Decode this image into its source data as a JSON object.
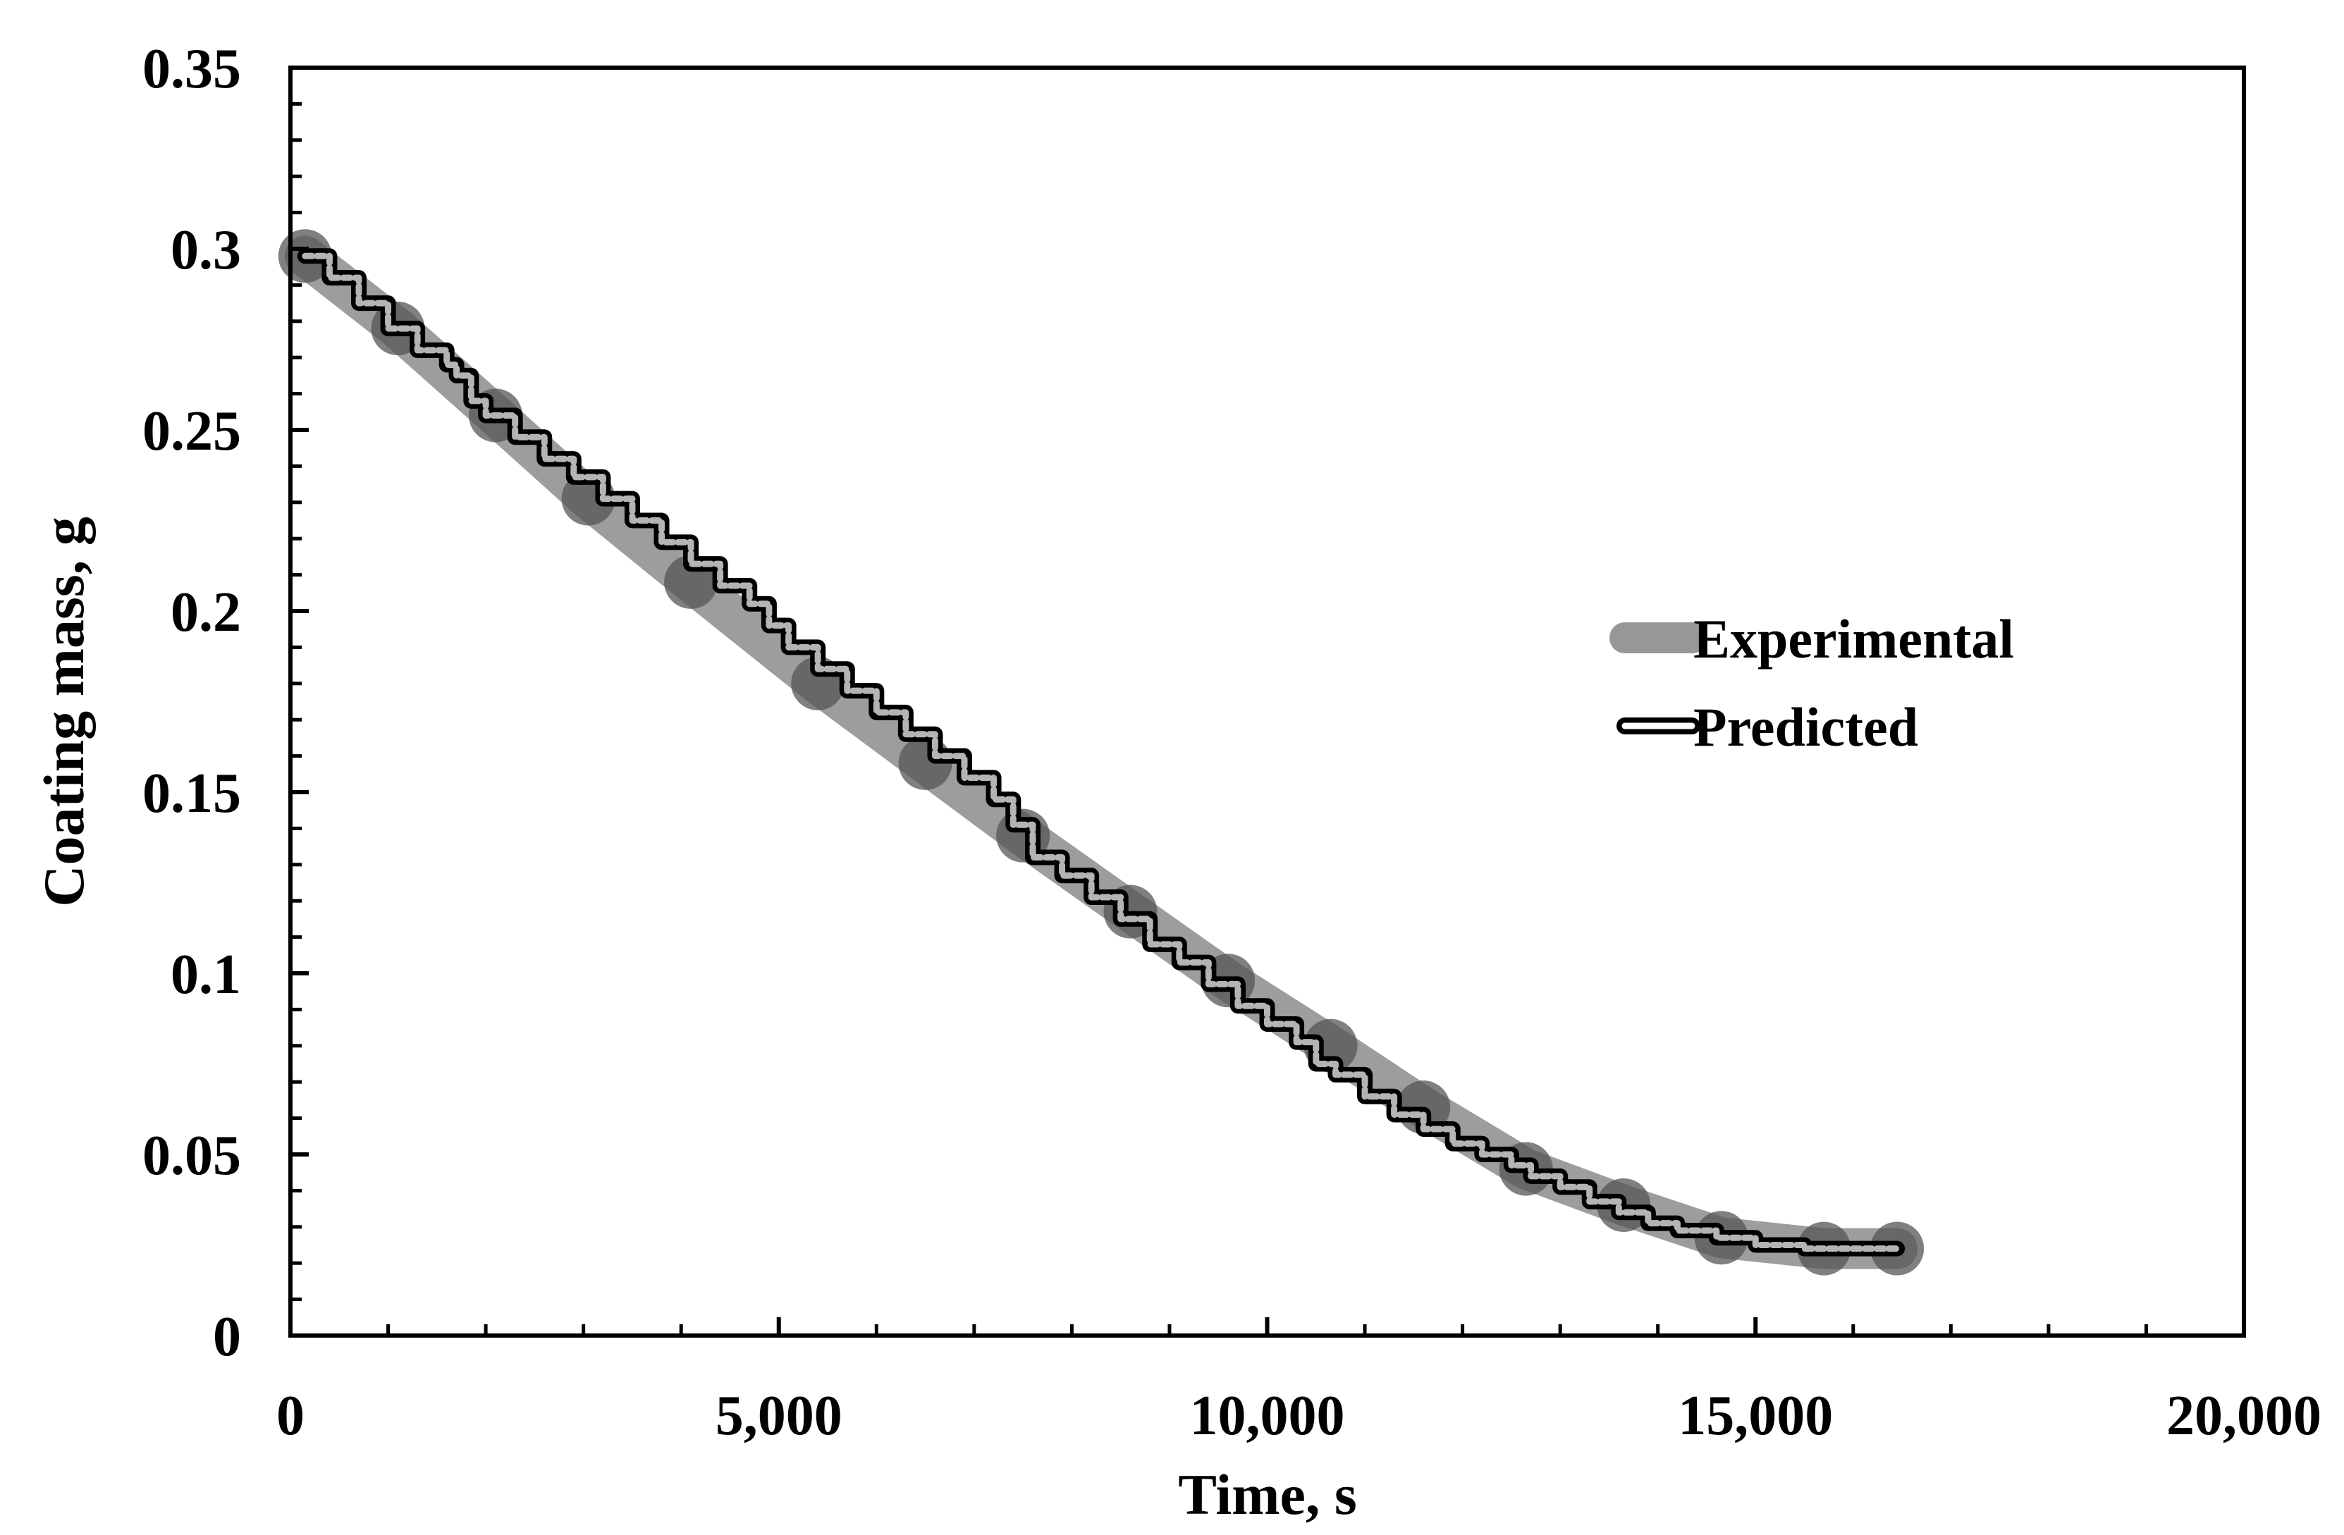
{
  "chart_data": {
    "type": "line",
    "title": "",
    "xlabel": "Time, s",
    "ylabel": "Coating mass, g",
    "xlim": [
      0,
      20000
    ],
    "ylim": [
      0,
      0.35
    ],
    "x_ticks": [
      0,
      5000,
      10000,
      15000,
      20000
    ],
    "x_tick_labels": [
      "0",
      "5,000",
      "10,000",
      "15,000",
      "20,000"
    ],
    "y_ticks": [
      0,
      0.05,
      0.1,
      0.15,
      0.2,
      0.25,
      0.3,
      0.35
    ],
    "y_tick_labels": [
      "0",
      "0.05",
      "0.1",
      "0.15",
      "0.2",
      "0.25",
      "0.3",
      "0.35"
    ],
    "grid": false,
    "legend_position": "right-middle",
    "series": [
      {
        "name": "Experimental",
        "style": "thick-gray-line-with-markers",
        "color": "#8c8c8c",
        "marker_color": "#555555",
        "x": [
          150,
          1100,
          2100,
          3050,
          4100,
          5400,
          6500,
          7500,
          8600,
          9600,
          10650,
          11600,
          12650,
          13650,
          14650,
          15700,
          16450
        ],
        "y": [
          0.298,
          0.278,
          0.254,
          0.231,
          0.208,
          0.18,
          0.158,
          0.138,
          0.117,
          0.098,
          0.08,
          0.063,
          0.046,
          0.036,
          0.027,
          0.024,
          0.024
        ]
      },
      {
        "name": "Predicted",
        "style": "stepped-outlined-line",
        "color": "#000000",
        "fill_color": "#ffffff",
        "x": [
          150,
          400,
          700,
          1000,
          1300,
          1600,
          1700,
          1850,
          2000,
          2300,
          2600,
          2900,
          3200,
          3500,
          3800,
          4100,
          4400,
          4700,
          4900,
          5100,
          5400,
          5700,
          6000,
          6300,
          6600,
          6900,
          7200,
          7400,
          7600,
          7900,
          8200,
          8500,
          8800,
          9100,
          9400,
          9700,
          10000,
          10300,
          10500,
          10700,
          11000,
          11300,
          11600,
          11900,
          12200,
          12500,
          12700,
          13000,
          13300,
          13600,
          13900,
          14200,
          14600,
          15000,
          15500,
          16000,
          16450
        ],
        "y": [
          0.298,
          0.292,
          0.285,
          0.278,
          0.272,
          0.268,
          0.265,
          0.258,
          0.254,
          0.248,
          0.242,
          0.237,
          0.231,
          0.225,
          0.219,
          0.213,
          0.207,
          0.202,
          0.196,
          0.19,
          0.184,
          0.178,
          0.172,
          0.166,
          0.16,
          0.154,
          0.148,
          0.141,
          0.132,
          0.127,
          0.121,
          0.115,
          0.108,
          0.103,
          0.097,
          0.091,
          0.086,
          0.081,
          0.075,
          0.072,
          0.066,
          0.061,
          0.057,
          0.053,
          0.05,
          0.047,
          0.044,
          0.041,
          0.037,
          0.034,
          0.031,
          0.029,
          0.027,
          0.025,
          0.024,
          0.024,
          0.024
        ]
      }
    ]
  }
}
